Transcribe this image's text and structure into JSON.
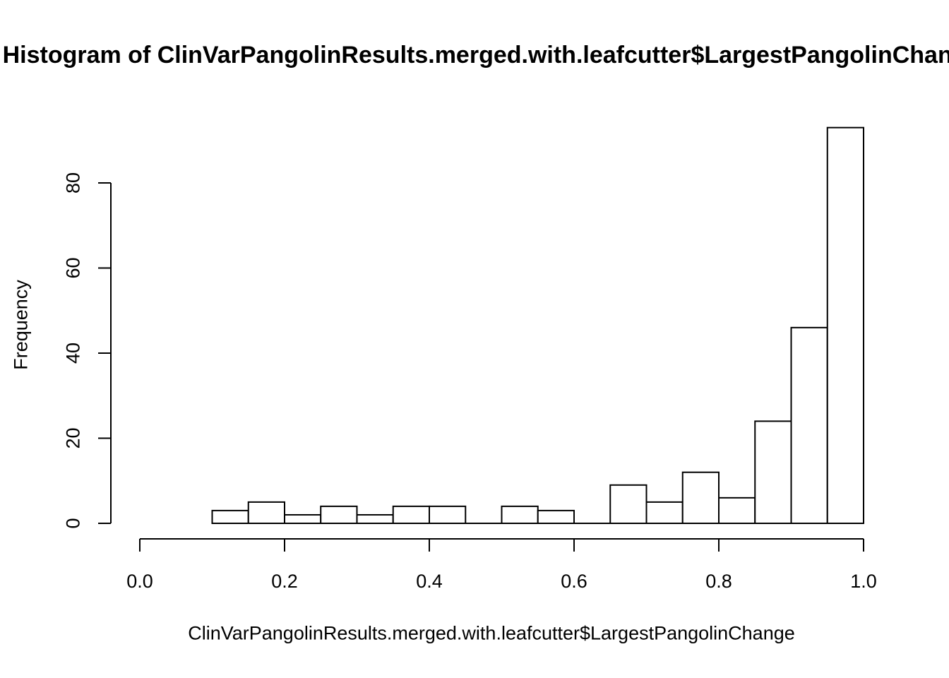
{
  "chart_data": {
    "type": "bar",
    "subtype": "histogram",
    "title": "Histogram of ClinVarPangolinResults.merged.with.leafcutter$LargestPangolinChange",
    "xlabel": "ClinVarPangolinResults.merged.with.leafcutter$LargestPangolinChange",
    "ylabel": "Frequency",
    "bin_width": 0.05,
    "bin_edges": [
      0.1,
      0.15,
      0.2,
      0.25,
      0.3,
      0.35,
      0.4,
      0.45,
      0.5,
      0.55,
      0.6,
      0.65,
      0.7,
      0.75,
      0.8,
      0.85,
      0.9,
      0.95,
      1.0
    ],
    "counts": [
      3,
      5,
      2,
      4,
      2,
      4,
      4,
      0,
      4,
      3,
      0,
      9,
      5,
      12,
      6,
      24,
      46,
      93
    ],
    "x_tick_labels": [
      "0.0",
      "0.2",
      "0.4",
      "0.6",
      "0.8",
      "1.0"
    ],
    "x_tick_values": [
      0.0,
      0.2,
      0.4,
      0.6,
      0.8,
      1.0
    ],
    "y_tick_labels": [
      "0",
      "20",
      "40",
      "60",
      "80"
    ],
    "y_tick_values": [
      0,
      20,
      40,
      60,
      80
    ],
    "xlim": [
      0.0,
      1.0
    ],
    "ylim": [
      0,
      93
    ],
    "grid": false,
    "legend": false,
    "bar_fill": "#ffffff",
    "bar_stroke": "#000000",
    "axis_color": "#000000",
    "background_color": "#ffffff"
  }
}
